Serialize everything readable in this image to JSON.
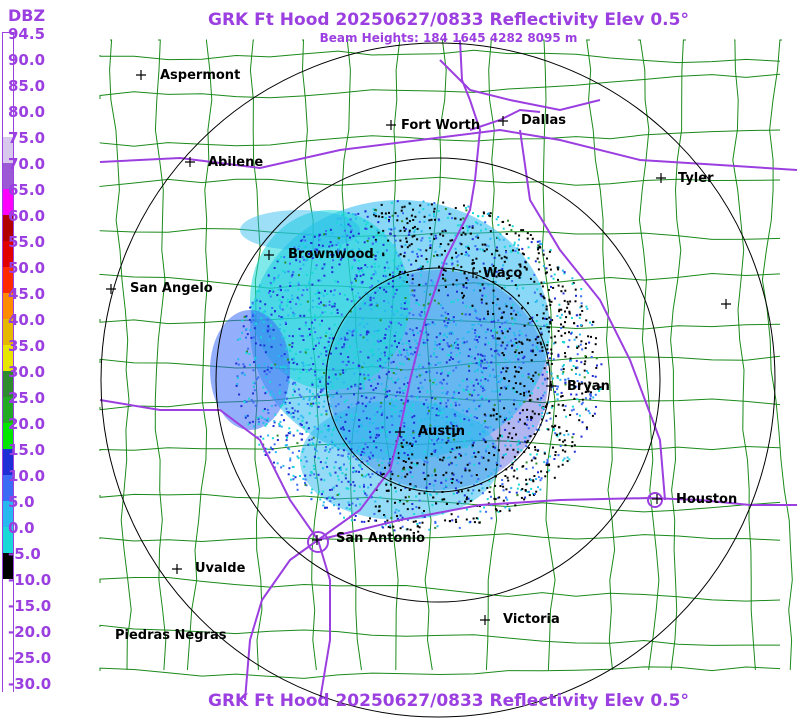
{
  "title": "GRK Ft Hood 20250627/0833 Reflectivity Elev 0.5°",
  "subtitle": "Beam Heights: 184 1645 4282 8095 m",
  "legend": {
    "units": "DBZ",
    "levels": [
      {
        "label": "94.5",
        "color": "#ffffff"
      },
      {
        "label": "90.0",
        "color": "#ffffff"
      },
      {
        "label": "85.0",
        "color": "#ffffff"
      },
      {
        "label": "80.0",
        "color": "#ffffff"
      },
      {
        "label": "75.0",
        "color": "#d8c8ee"
      },
      {
        "label": "70.0",
        "color": "#9b59d6"
      },
      {
        "label": "65.0",
        "color": "#ff00ff"
      },
      {
        "label": "60.0",
        "color": "#b00000"
      },
      {
        "label": "55.0",
        "color": "#e00000"
      },
      {
        "label": "50.0",
        "color": "#ff2a00"
      },
      {
        "label": "45.0",
        "color": "#ff8c00"
      },
      {
        "label": "40.0",
        "color": "#e6b800"
      },
      {
        "label": "35.0",
        "color": "#e6e600"
      },
      {
        "label": "30.0",
        "color": "#2e8b2e"
      },
      {
        "label": "25.0",
        "color": "#22aa22"
      },
      {
        "label": "20.0",
        "color": "#00e600"
      },
      {
        "label": "15.0",
        "color": "#1f2fd6"
      },
      {
        "label": "10.0",
        "color": "#3a6cf5"
      },
      {
        "label": "5.0",
        "color": "#28b8f0"
      },
      {
        "label": "0.0",
        "color": "#18d8d8"
      },
      {
        "label": "-5.0",
        "color": "#000000"
      },
      {
        "label": "-10.0",
        "color": "#ffffff"
      },
      {
        "label": "-15.0",
        "color": "#ffffff"
      },
      {
        "label": "-20.0",
        "color": "#ffffff"
      },
      {
        "label": "-25.0",
        "color": "#ffffff"
      },
      {
        "label": "-30.0",
        "color": "#ffffff"
      }
    ]
  },
  "cities": [
    {
      "id": "aspermont",
      "name": "Aspermont"
    },
    {
      "id": "fort-worth",
      "name": "Fort Worth"
    },
    {
      "id": "dallas",
      "name": "Dallas"
    },
    {
      "id": "abilene",
      "name": "Abilene"
    },
    {
      "id": "tyler",
      "name": "Tyler"
    },
    {
      "id": "brownwood",
      "name": "Brownwood"
    },
    {
      "id": "waco",
      "name": "Waco"
    },
    {
      "id": "san-angelo",
      "name": "San Angelo"
    },
    {
      "id": "bryan",
      "name": "Bryan"
    },
    {
      "id": "austin",
      "name": "Austin"
    },
    {
      "id": "houston",
      "name": "Houston"
    },
    {
      "id": "san-antonio",
      "name": "San Antonio"
    },
    {
      "id": "uvalde",
      "name": "Uvalde"
    },
    {
      "id": "victoria",
      "name": "Victoria"
    },
    {
      "id": "piedras-negras",
      "name": "Piedras Negras"
    }
  ],
  "colors": {
    "title": "#9b3fe0",
    "highway": "#9b3fe0",
    "county": "#1a8a1a",
    "range_ring": "#000000"
  }
}
